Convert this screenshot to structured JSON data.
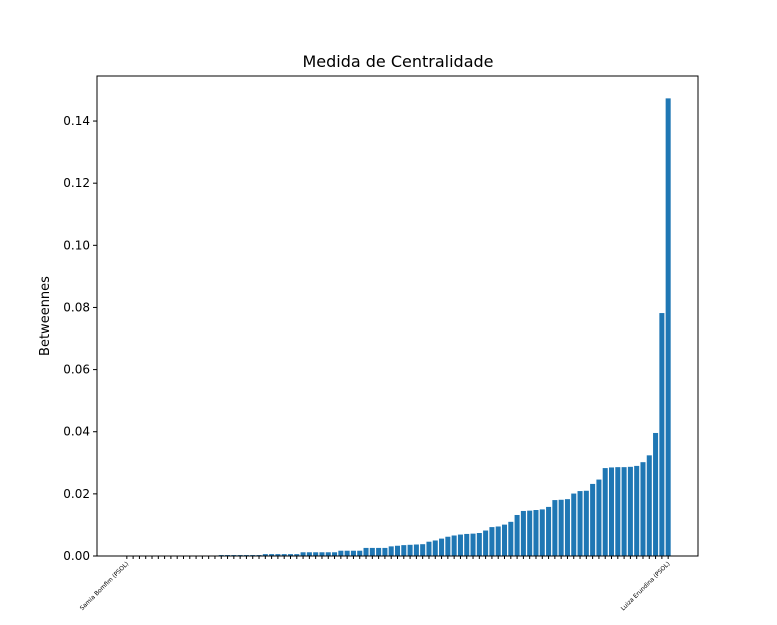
{
  "chart_data": {
    "type": "bar",
    "title": "Medida de Centralidade",
    "y_label": "Betweennes",
    "color": "#1f77b4",
    "categories": [
      "Samia Bomfim (PSOL)",
      null,
      null,
      null,
      null,
      null,
      null,
      null,
      null,
      null,
      null,
      null,
      null,
      null,
      null,
      null,
      null,
      null,
      null,
      null,
      null,
      null,
      null,
      null,
      null,
      null,
      null,
      null,
      null,
      null,
      null,
      null,
      null,
      null,
      null,
      null,
      null,
      null,
      null,
      null,
      null,
      null,
      null,
      null,
      null,
      null,
      null,
      null,
      null,
      null,
      null,
      null,
      null,
      null,
      null,
      null,
      null,
      null,
      null,
      null,
      null,
      null,
      null,
      null,
      null,
      null,
      null,
      null,
      null,
      null,
      null,
      null,
      null,
      null,
      null,
      null,
      null,
      null,
      null,
      null,
      null,
      null,
      null,
      null,
      null,
      null,
      "Luiza Erundina (PSOL)"
    ],
    "values": [
      0,
      0,
      0,
      0,
      0,
      0,
      0,
      0,
      0,
      0,
      0,
      0,
      0,
      0,
      0,
      0.0003,
      0.0003,
      0.0003,
      0.0003,
      0.0003,
      0.0003,
      0.0003,
      0.0006,
      0.0006,
      0.0006,
      0.0006,
      0.0006,
      0.0006,
      0.0012,
      0.0012,
      0.0012,
      0.0012,
      0.0012,
      0.0012,
      0.0017,
      0.0017,
      0.0017,
      0.0017,
      0.0026,
      0.0026,
      0.0026,
      0.0026,
      0.0031,
      0.0033,
      0.0035,
      0.0036,
      0.0037,
      0.0038,
      0.0046,
      0.005,
      0.0056,
      0.0062,
      0.0066,
      0.0069,
      0.0071,
      0.0072,
      0.0074,
      0.0082,
      0.0093,
      0.0095,
      0.0101,
      0.011,
      0.0132,
      0.0145,
      0.0146,
      0.0148,
      0.015,
      0.0158,
      0.018,
      0.0181,
      0.0183,
      0.0201,
      0.0209,
      0.021,
      0.0232,
      0.0246,
      0.0283,
      0.0285,
      0.0286,
      0.0286,
      0.0287,
      0.029,
      0.0302,
      0.0324,
      0.0396,
      0.0782,
      0.1473
    ],
    "ylim": [
      0,
      0.1545
    ],
    "yticks": [
      {
        "value": 0,
        "label": "0.00"
      },
      {
        "value": 0.02,
        "label": "0.02"
      },
      {
        "value": 0.04,
        "label": "0.04"
      },
      {
        "value": 0.06,
        "label": "0.06"
      },
      {
        "value": 0.08,
        "label": "0.08"
      },
      {
        "value": 0.1,
        "label": "0.10"
      },
      {
        "value": 0.12,
        "label": "0.12"
      },
      {
        "value": 0.14,
        "label": "0.14"
      }
    ],
    "grid": false
  }
}
